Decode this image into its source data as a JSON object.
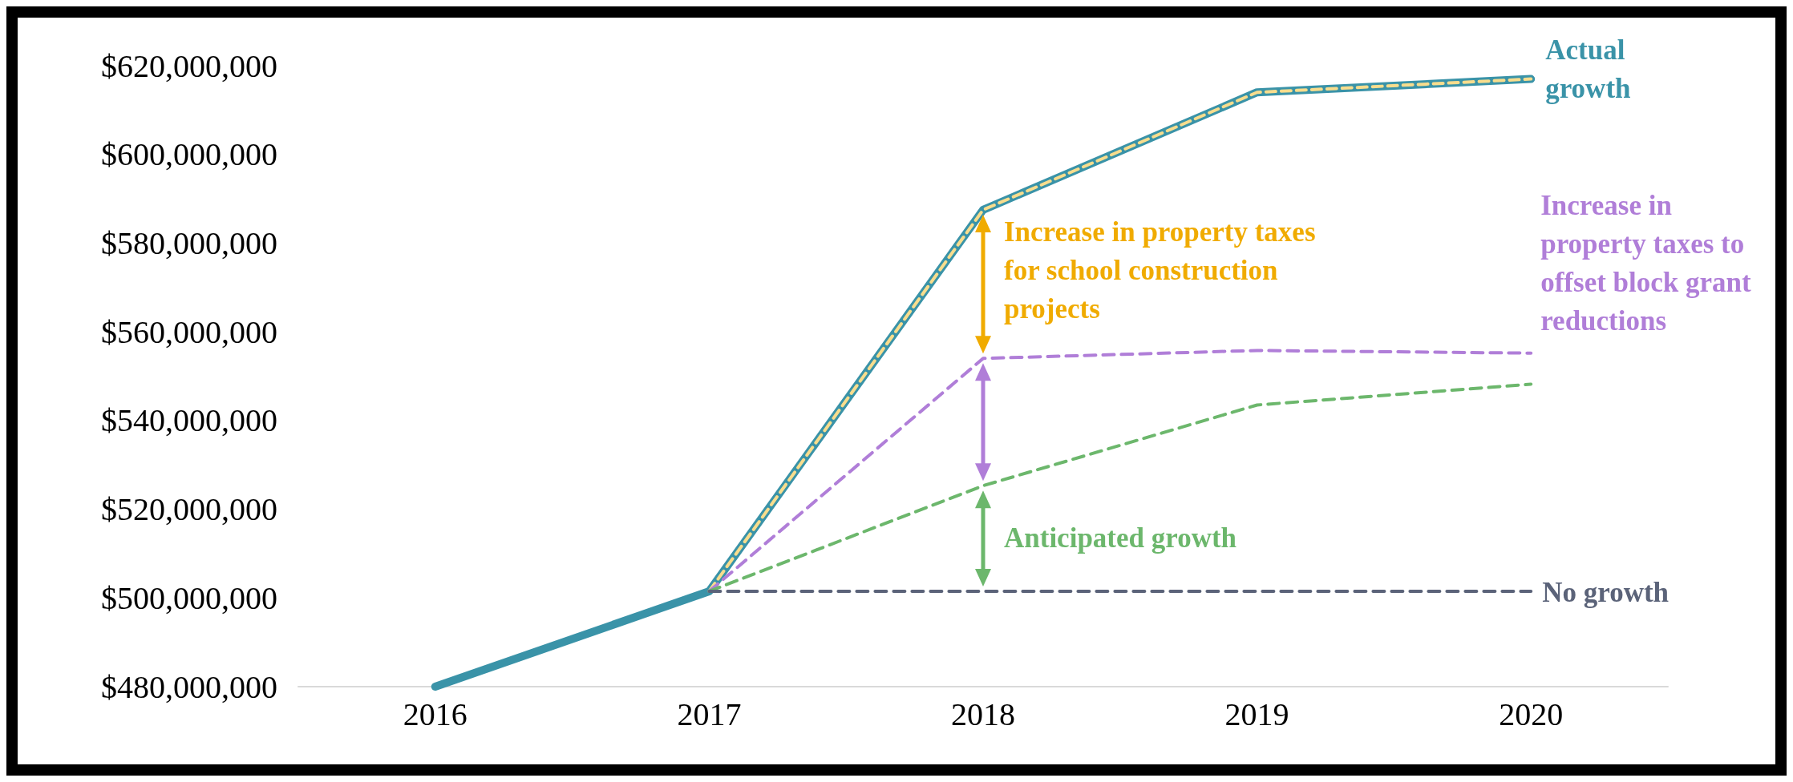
{
  "chart_data": {
    "type": "line",
    "categories": [
      "2016",
      "2017",
      "2018",
      "2019",
      "2020"
    ],
    "series": [
      {
        "name": "Actual growth",
        "color": "#3a93a8",
        "line_style": "solid",
        "values": [
          480000000,
          501500000,
          587500000,
          614000000,
          617000000
        ]
      },
      {
        "color": "#f8dd8d",
        "line_style": "dashed",
        "values": [
          null,
          501500000,
          587500000,
          614000000,
          617000000
        ]
      },
      {
        "name": "Increase in property taxes to offset block grant reductions",
        "color": "#b07ed8",
        "line_style": "dashed",
        "values": [
          null,
          501500000,
          554000000,
          555800000,
          555200000
        ]
      },
      {
        "color": "#6cb76c",
        "line_style": "dashed",
        "values": [
          null,
          501500000,
          525300000,
          543500000,
          548200000
        ]
      },
      {
        "name": "No growth",
        "color": "#5b6379",
        "line_style": "dashed",
        "values": [
          null,
          501500000,
          501500000,
          501500000,
          501500000
        ]
      }
    ],
    "ylim": [
      480000000,
      620000000
    ],
    "yticks": [
      {
        "value": 480000000,
        "label": "$480,000,000"
      },
      {
        "value": 500000000,
        "label": "$500,000,000"
      },
      {
        "value": 520000000,
        "label": "$520,000,000"
      },
      {
        "value": 540000000,
        "label": "$540,000,000"
      },
      {
        "value": 560000000,
        "label": "$560,000,000"
      },
      {
        "value": 580000000,
        "label": "$580,000,000"
      },
      {
        "value": 600000000,
        "label": "$600,000,000"
      },
      {
        "value": 620000000,
        "label": "$620,000,000"
      }
    ],
    "annotations": [
      "Increase in property taxes for school construction projects",
      "Anticipated growth"
    ],
    "grid": false,
    "legend": false,
    "marker": "none"
  }
}
